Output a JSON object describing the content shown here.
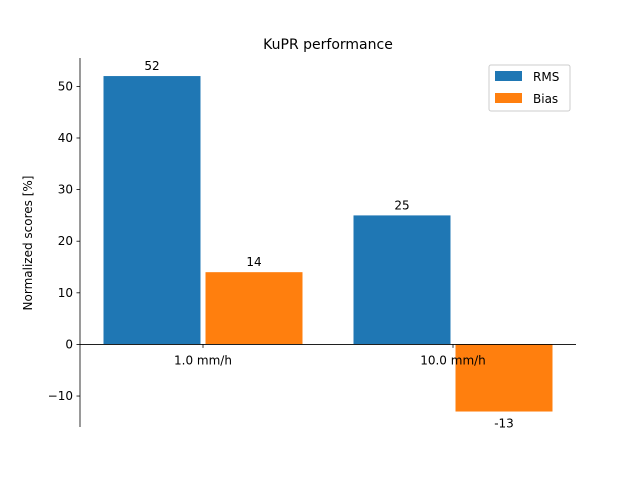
{
  "chart_data": {
    "type": "bar",
    "title": "KuPR performance",
    "xlabel": "",
    "ylabel": "Normalized scores [%]",
    "categories": [
      "1.0 mm/h",
      "10.0 mm/h"
    ],
    "series": [
      {
        "name": "RMS",
        "values": [
          52,
          25
        ],
        "labels": [
          "52",
          "25"
        ],
        "color": "#1f77b4"
      },
      {
        "name": "Bias",
        "values": [
          14,
          -13
        ],
        "labels": [
          "14",
          "-13"
        ],
        "color": "#ff7f0e"
      }
    ],
    "yticks": [
      -10,
      0,
      10,
      20,
      30,
      40,
      50
    ],
    "ytick_labels": [
      "−10",
      "0",
      "10",
      "20",
      "30",
      "40",
      "50"
    ],
    "ylim": [
      -16,
      55.5
    ],
    "grid": false,
    "legend_position": "top-right",
    "spines": "left and zero baseline only"
  }
}
